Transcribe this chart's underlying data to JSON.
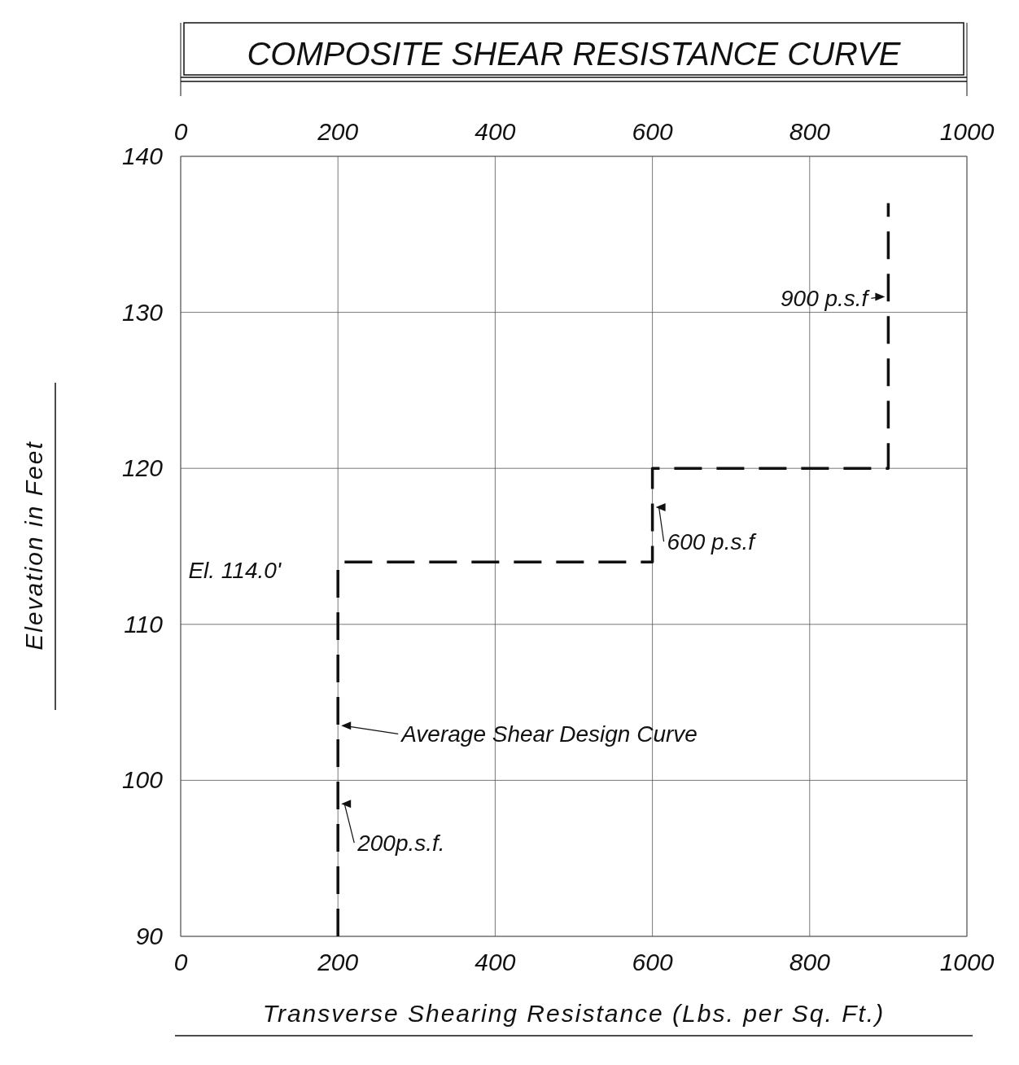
{
  "chart_data": {
    "type": "line",
    "title": "COMPOSITE SHEAR RESISTANCE CURVE",
    "xlabel": "Transverse Shearing Resistance (Lbs. per Sq. Ft.)",
    "ylabel": "Elevation in Feet",
    "series": [
      {
        "color": "#111111",
        "x": [
          200,
          200,
          600,
          600,
          900,
          900
        ],
        "values": [
          90,
          114,
          114,
          120,
          120,
          137
        ]
      }
    ],
    "line_style": "dashed",
    "marker": "none",
    "grid": true,
    "xlim": [
      0,
      1000
    ],
    "xticks": [
      0,
      200,
      400,
      600,
      800,
      1000
    ],
    "x2lim": [
      0,
      1000
    ],
    "x2ticks": [
      0,
      200,
      400,
      600,
      800,
      1000
    ],
    "ylim": [
      90,
      140
    ],
    "yticks": [
      90,
      100,
      110,
      120,
      130,
      140
    ],
    "annotations": [
      {
        "text": "900 p.s.f",
        "x": 900,
        "y": 131
      },
      {
        "text": "600 p.s.f",
        "x": 600,
        "y": 117.5
      },
      {
        "text": "El. 114.0'",
        "x": 200,
        "y": 114
      },
      {
        "text": "Average Shear Design Curve",
        "x": 200,
        "y": 103.5
      },
      {
        "text": "200p.s.f.",
        "x": 200,
        "y": 98.5
      }
    ]
  }
}
